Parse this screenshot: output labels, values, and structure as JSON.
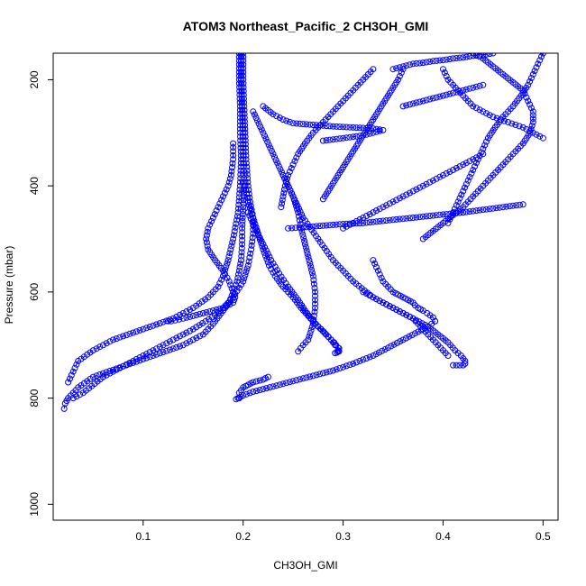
{
  "chart_data": {
    "type": "scatter",
    "title": "ATOM3 Northeast_Pacific_2 CH3OH_GMI",
    "xlabel": "CH3OH_GMI",
    "ylabel": "Pressure (mbar)",
    "xlim": [
      0.01,
      0.515
    ],
    "ylim": [
      1030,
      150
    ],
    "y_inverted": true,
    "x_ticks": [
      0.1,
      0.2,
      0.3,
      0.4,
      0.5
    ],
    "x_tick_labels": [
      "0.1",
      "0.2",
      "0.3",
      "0.4",
      "0.5"
    ],
    "y_ticks": [
      200,
      400,
      600,
      800,
      1000
    ],
    "y_tick_labels": [
      "200",
      "400",
      "600",
      "800",
      "1000"
    ],
    "color": "#0000ff",
    "marker": "open-circle",
    "grid": false,
    "legend": "none",
    "series": [
      {
        "x": [
          0.198,
          0.198,
          0.199,
          0.2,
          0.2,
          0.201,
          0.2,
          0.199,
          0.199,
          0.198,
          0.196,
          0.194,
          0.19,
          0.186,
          0.178,
          0.17,
          0.16,
          0.14,
          0.11,
          0.08,
          0.05,
          0.035,
          0.025,
          0.022,
          0.021
        ],
        "y": [
          150,
          200,
          250,
          300,
          350,
          400,
          440,
          480,
          510,
          540,
          560,
          580,
          600,
          620,
          640,
          660,
          680,
          700,
          720,
          740,
          760,
          780,
          800,
          810,
          820
        ]
      },
      {
        "x": [
          0.196,
          0.196,
          0.197,
          0.197,
          0.198,
          0.197,
          0.195,
          0.19,
          0.185,
          0.18,
          0.175,
          0.165,
          0.15,
          0.13,
          0.1,
          0.07,
          0.05,
          0.035,
          0.03,
          0.025
        ],
        "y": [
          150,
          200,
          250,
          300,
          350,
          400,
          450,
          500,
          540,
          570,
          590,
          610,
          630,
          650,
          670,
          690,
          710,
          730,
          750,
          770
        ]
      },
      {
        "x": [
          0.2,
          0.2,
          0.201,
          0.202,
          0.203,
          0.205,
          0.207,
          0.21,
          0.21,
          0.208,
          0.205,
          0.2,
          0.19,
          0.175,
          0.15,
          0.12,
          0.09,
          0.06,
          0.04,
          0.03
        ],
        "y": [
          150,
          200,
          250,
          300,
          350,
          400,
          430,
          460,
          490,
          520,
          550,
          580,
          610,
          640,
          670,
          700,
          730,
          760,
          790,
          800
        ]
      },
      {
        "x": [
          0.19,
          0.19,
          0.188,
          0.185,
          0.18,
          0.175,
          0.17,
          0.165,
          0.163,
          0.165,
          0.172,
          0.18,
          0.186,
          0.19,
          0.192,
          0.19,
          0.18,
          0.16,
          0.14,
          0.128,
          0.125
        ],
        "y": [
          320,
          350,
          380,
          400,
          420,
          440,
          460,
          480,
          500,
          520,
          540,
          560,
          580,
          600,
          610,
          620,
          630,
          640,
          650,
          655,
          655
        ]
      },
      {
        "x": [
          0.202,
          0.205,
          0.21,
          0.215,
          0.22,
          0.226,
          0.232,
          0.24,
          0.25,
          0.258,
          0.265,
          0.272,
          0.278,
          0.283,
          0.288,
          0.291,
          0.293,
          0.295,
          0.295,
          0.295,
          0.294,
          0.292
        ],
        "y": [
          400,
          430,
          460,
          490,
          520,
          550,
          570,
          590,
          610,
          630,
          645,
          660,
          670,
          680,
          690,
          695,
          700,
          705,
          710,
          712,
          714,
          715
        ]
      },
      {
        "x": [
          0.21,
          0.22,
          0.23,
          0.24,
          0.25,
          0.255,
          0.258,
          0.262,
          0.266,
          0.27,
          0.272,
          0.272,
          0.27,
          0.265,
          0.26,
          0.255
        ],
        "y": [
          260,
          300,
          340,
          380,
          420,
          450,
          480,
          510,
          540,
          570,
          600,
          630,
          660,
          690,
          700,
          712
        ]
      },
      {
        "x": [
          0.205,
          0.212,
          0.22,
          0.228,
          0.236,
          0.245,
          0.255,
          0.262,
          0.268,
          0.275,
          0.282,
          0.288,
          0.292,
          0.296,
          0.296
        ],
        "y": [
          450,
          480,
          510,
          540,
          565,
          590,
          615,
          635,
          650,
          665,
          678,
          690,
          700,
          706,
          712
        ]
      },
      {
        "x": [
          0.24,
          0.25,
          0.26,
          0.275,
          0.29,
          0.31,
          0.33,
          0.35,
          0.37,
          0.385,
          0.395,
          0.405,
          0.412,
          0.418,
          0.422,
          0.422,
          0.42,
          0.41
        ],
        "y": [
          380,
          420,
          460,
          500,
          540,
          580,
          610,
          630,
          650,
          665,
          680,
          695,
          710,
          720,
          730,
          735,
          738,
          738
        ]
      },
      {
        "x": [
          0.33,
          0.335,
          0.34,
          0.345,
          0.35,
          0.355,
          0.36,
          0.365,
          0.37,
          0.372,
          0.375,
          0.38,
          0.384,
          0.39,
          0.392
        ],
        "y": [
          540,
          560,
          580,
          590,
          600,
          605,
          610,
          615,
          620,
          625,
          630,
          635,
          640,
          648,
          655
        ]
      },
      {
        "x": [
          0.392,
          0.385,
          0.375,
          0.36,
          0.345,
          0.33,
          0.31,
          0.29,
          0.27,
          0.25,
          0.23,
          0.21,
          0.2,
          0.195,
          0.193
        ],
        "y": [
          655,
          665,
          675,
          690,
          705,
          720,
          735,
          748,
          758,
          768,
          778,
          788,
          795,
          800,
          802
        ]
      },
      {
        "x": [
          0.196,
          0.196,
          0.2,
          0.205,
          0.21,
          0.22,
          0.225
        ],
        "y": [
          800,
          790,
          780,
          775,
          770,
          765,
          760
        ]
      },
      {
        "x": [
          0.4,
          0.405,
          0.41,
          0.415,
          0.42,
          0.425,
          0.43,
          0.44,
          0.45,
          0.465,
          0.48,
          0.49,
          0.5
        ],
        "y": [
          180,
          200,
          210,
          220,
          230,
          240,
          250,
          260,
          270,
          280,
          290,
          300,
          310
        ]
      },
      {
        "x": [
          0.43,
          0.44,
          0.45,
          0.46,
          0.47,
          0.48,
          0.485,
          0.49,
          0.49,
          0.487,
          0.48,
          0.47,
          0.46,
          0.45,
          0.44,
          0.43,
          0.42,
          0.41,
          0.4,
          0.39,
          0.38
        ],
        "y": [
          150,
          160,
          175,
          190,
          205,
          220,
          240,
          260,
          280,
          300,
          320,
          340,
          360,
          380,
          400,
          420,
          440,
          455,
          470,
          485,
          500
        ]
      },
      {
        "x": [
          0.5,
          0.495,
          0.49,
          0.485,
          0.478,
          0.47,
          0.46,
          0.452,
          0.445,
          0.44,
          0.435,
          0.43,
          0.425,
          0.42,
          0.415,
          0.41,
          0.405
        ],
        "y": [
          150,
          170,
          190,
          210,
          230,
          250,
          270,
          290,
          310,
          330,
          350,
          370,
          390,
          410,
          430,
          450,
          470
        ]
      },
      {
        "x": [
          0.36,
          0.355,
          0.35,
          0.345,
          0.34,
          0.335,
          0.33,
          0.325,
          0.32,
          0.315,
          0.31,
          0.305,
          0.3,
          0.295,
          0.29,
          0.285,
          0.28
        ],
        "y": [
          180,
          200,
          215,
          230,
          245,
          260,
          275,
          290,
          305,
          320,
          335,
          350,
          365,
          380,
          395,
          410,
          425
        ]
      },
      {
        "x": [
          0.33,
          0.32,
          0.31,
          0.3,
          0.29,
          0.28,
          0.27,
          0.262,
          0.255,
          0.25,
          0.245,
          0.242,
          0.24,
          0.238
        ],
        "y": [
          180,
          200,
          220,
          240,
          260,
          280,
          300,
          320,
          340,
          360,
          380,
          400,
          420,
          440
        ]
      },
      {
        "x": [
          0.245,
          0.26,
          0.28,
          0.3,
          0.32,
          0.34,
          0.36,
          0.38,
          0.4,
          0.42,
          0.44,
          0.46,
          0.48
        ],
        "y": [
          480,
          478,
          475,
          472,
          470,
          466,
          462,
          458,
          454,
          450,
          445,
          440,
          435
        ]
      },
      {
        "x": [
          0.22,
          0.23,
          0.24,
          0.25,
          0.27,
          0.29,
          0.31,
          0.33,
          0.34,
          0.33,
          0.32,
          0.3,
          0.28
        ],
        "y": [
          250,
          265,
          275,
          282,
          285,
          288,
          290,
          292,
          295,
          300,
          305,
          310,
          315
        ]
      },
      {
        "x": [
          0.3,
          0.31,
          0.32,
          0.33,
          0.34,
          0.35,
          0.36,
          0.37,
          0.38,
          0.39,
          0.4,
          0.41,
          0.42,
          0.43,
          0.44
        ],
        "y": [
          480,
          470,
          460,
          450,
          440,
          430,
          420,
          410,
          400,
          390,
          380,
          370,
          360,
          350,
          340
        ]
      },
      {
        "x": [
          0.36,
          0.37,
          0.38,
          0.39,
          0.4,
          0.41,
          0.42,
          0.43,
          0.44
        ],
        "y": [
          250,
          245,
          240,
          235,
          230,
          225,
          220,
          215,
          210
        ]
      },
      {
        "x": [
          0.35,
          0.36,
          0.37,
          0.38,
          0.39,
          0.4,
          0.41,
          0.42,
          0.43,
          0.44,
          0.45
        ],
        "y": [
          180,
          175,
          170,
          168,
          165,
          163,
          160,
          158,
          155,
          153,
          150
        ]
      },
      {
        "x": [
          0.32,
          0.33,
          0.34,
          0.35,
          0.36,
          0.37,
          0.375,
          0.38,
          0.385,
          0.39,
          0.395,
          0.4,
          0.405
        ],
        "y": [
          600,
          610,
          620,
          630,
          640,
          650,
          660,
          670,
          680,
          690,
          700,
          710,
          720
        ]
      }
    ]
  }
}
